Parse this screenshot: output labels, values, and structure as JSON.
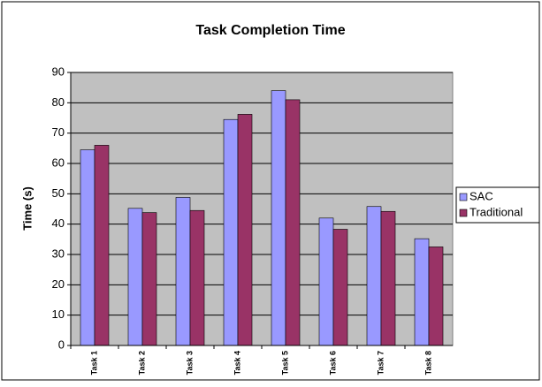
{
  "chart_data": {
    "type": "bar",
    "title": "Task Completion Time",
    "ylabel": "Time (s)",
    "categories": [
      "Task 1",
      "Task 2",
      "Task 3",
      "Task 4",
      "Task 5",
      "Task 6",
      "Task 7",
      "Task 8"
    ],
    "series": [
      {
        "name": "SAC",
        "color": "#9999ff",
        "values": [
          64.5,
          45.2,
          48.8,
          74.5,
          84,
          42,
          45.8,
          35.2
        ]
      },
      {
        "name": "Traditional",
        "color": "#993366",
        "values": [
          66,
          43.8,
          44.5,
          76.2,
          81,
          38.3,
          44.2,
          32.5
        ]
      }
    ],
    "ylim": [
      0,
      90
    ],
    "yticks": [
      0,
      10,
      20,
      30,
      40,
      50,
      60,
      70,
      80,
      90
    ],
    "grid": true,
    "legend": "right"
  }
}
